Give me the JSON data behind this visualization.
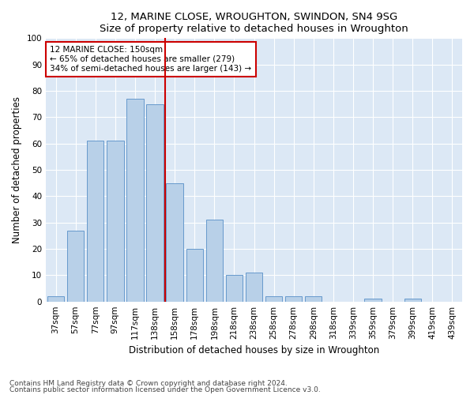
{
  "title1": "12, MARINE CLOSE, WROUGHTON, SWINDON, SN4 9SG",
  "title2": "Size of property relative to detached houses in Wroughton",
  "xlabel": "Distribution of detached houses by size in Wroughton",
  "ylabel": "Number of detached properties",
  "categories": [
    "37sqm",
    "57sqm",
    "77sqm",
    "97sqm",
    "117sqm",
    "138sqm",
    "158sqm",
    "178sqm",
    "198sqm",
    "218sqm",
    "238sqm",
    "258sqm",
    "278sqm",
    "298sqm",
    "318sqm",
    "339sqm",
    "359sqm",
    "379sqm",
    "399sqm",
    "419sqm",
    "439sqm"
  ],
  "values": [
    2,
    27,
    61,
    61,
    77,
    75,
    45,
    20,
    31,
    10,
    11,
    2,
    2,
    2,
    0,
    0,
    1,
    0,
    1,
    0,
    0
  ],
  "bar_color": "#b8d0e8",
  "bar_edge_color": "#6699cc",
  "vline_x": 5.5,
  "vline_color": "#cc0000",
  "annotation_title": "12 MARINE CLOSE: 150sqm",
  "annotation_line1": "← 65% of detached houses are smaller (279)",
  "annotation_line2": "34% of semi-detached houses are larger (143) →",
  "annotation_box_color": "#cc0000",
  "ylim": [
    0,
    100
  ],
  "yticks": [
    0,
    10,
    20,
    30,
    40,
    50,
    60,
    70,
    80,
    90,
    100
  ],
  "footnote1": "Contains HM Land Registry data © Crown copyright and database right 2024.",
  "footnote2": "Contains public sector information licensed under the Open Government Licence v3.0.",
  "background_color": "#dce8f5",
  "plot_background": "#ffffff",
  "grid_color": "#ffffff",
  "title_fontsize": 9.5,
  "label_fontsize": 8.5,
  "tick_fontsize": 7.5,
  "footnote_fontsize": 6.5
}
